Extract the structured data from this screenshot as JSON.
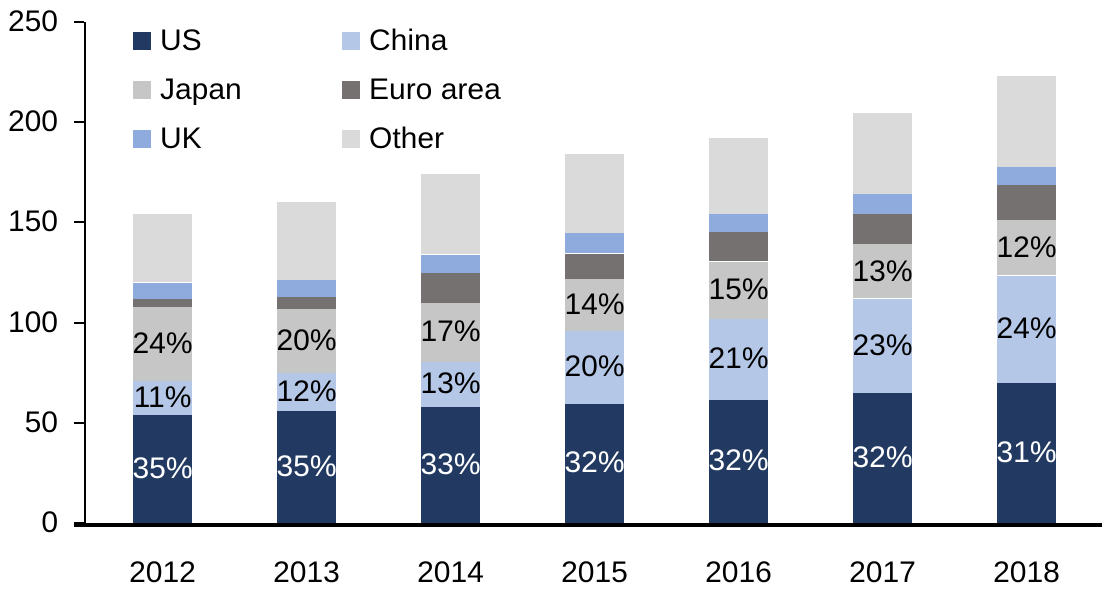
{
  "chart_data": {
    "type": "bar",
    "stacked": true,
    "title": "",
    "categories": [
      "2012",
      "2013",
      "2014",
      "2015",
      "2016",
      "2017",
      "2018"
    ],
    "yticks": [
      0,
      50,
      100,
      150,
      200,
      250
    ],
    "ylim": [
      0,
      250
    ],
    "grid": false,
    "legend_position": "top-left",
    "legend_columns": 2,
    "series": [
      {
        "name": "US",
        "color": "#223A61",
        "label_color": "#FFFFFF",
        "values": [
          54,
          56,
          58,
          59.5,
          61.5,
          65,
          70
        ],
        "pct_labels": [
          "35%",
          "35%",
          "33%",
          "32%",
          "32%",
          "32%",
          "31%"
        ]
      },
      {
        "name": "China",
        "color": "#B4C7E7",
        "label_color": "#000000",
        "values": [
          17,
          19,
          22.5,
          36.5,
          40.5,
          47,
          53.5
        ],
        "pct_labels": [
          "11%",
          "12%",
          "13%",
          "20%",
          "21%",
          "23%",
          "24%"
        ]
      },
      {
        "name": "Japan",
        "color": "#C6C6C6",
        "label_color": "#000000",
        "values": [
          37,
          32,
          29.5,
          26,
          28.5,
          27,
          27.5
        ],
        "pct_labels": [
          "24%",
          "20%",
          "17%",
          "14%",
          "15%",
          "13%",
          "12%"
        ]
      },
      {
        "name": "Euro area",
        "color": "#767171",
        "label_color": "#000000",
        "values": [
          4,
          6,
          15,
          12.5,
          14.5,
          15,
          17.5
        ],
        "pct_labels": null
      },
      {
        "name": "UK",
        "color": "#8FAADC",
        "label_color": "#000000",
        "values": [
          8,
          8.5,
          9,
          10,
          9,
          10,
          9
        ],
        "pct_labels": null
      },
      {
        "name": "Other",
        "color": "#DADADA",
        "label_color": "#000000",
        "values": [
          34,
          38.5,
          40,
          39.5,
          38,
          40.5,
          45.5
        ],
        "pct_labels": null
      }
    ]
  }
}
